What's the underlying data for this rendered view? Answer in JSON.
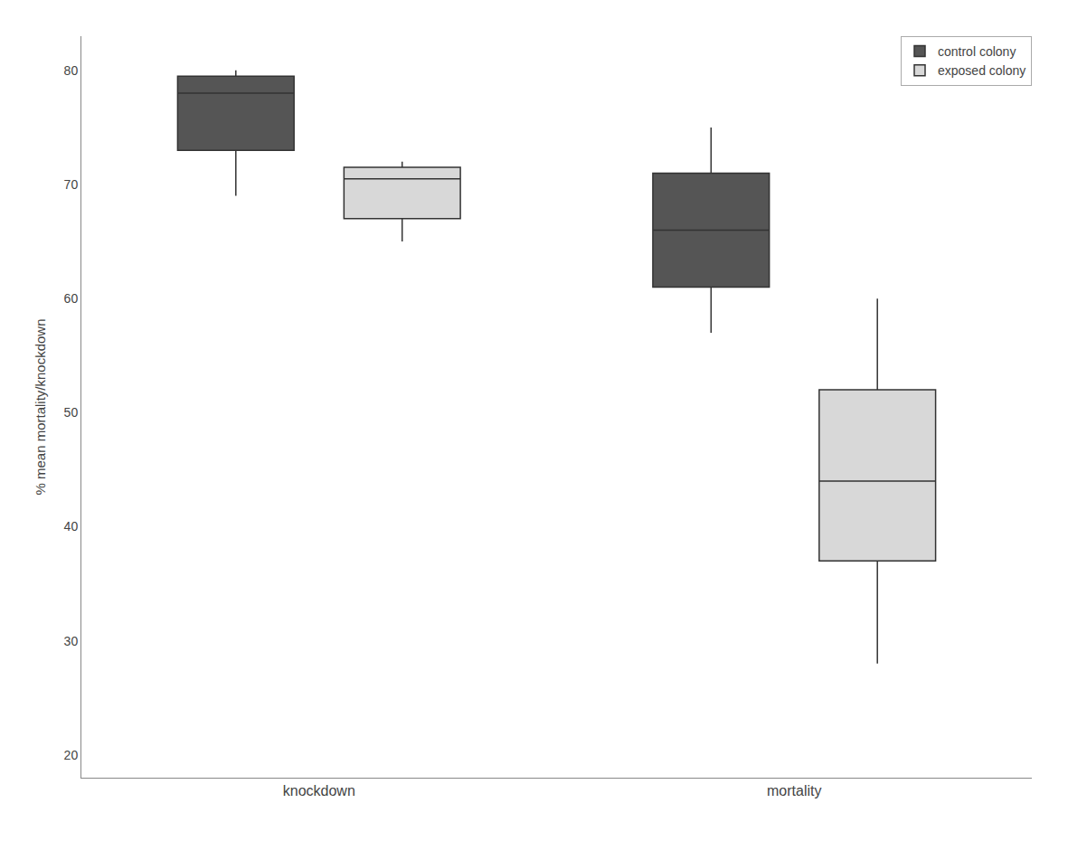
{
  "chart_data": {
    "type": "box",
    "categories": [
      "knockdown",
      "mortality"
    ],
    "series": [
      {
        "name": "control colony",
        "color": "#555555",
        "values": [
          {
            "whisker_low": 69,
            "q1": 73,
            "median": 78,
            "q3": 79.5,
            "whisker_high": 80
          },
          {
            "whisker_low": 57,
            "q1": 61,
            "median": 66,
            "q3": 71,
            "whisker_high": 75
          }
        ]
      },
      {
        "name": "exposed colony",
        "color": "#d8d8d8",
        "values": [
          {
            "whisker_low": 65,
            "q1": 67,
            "median": 70.5,
            "q3": 71.5,
            "whisker_high": 72
          },
          {
            "whisker_low": 28,
            "q1": 37,
            "median": 44,
            "q3": 52,
            "whisker_high": 60
          }
        ]
      }
    ],
    "ylabel": "% mean mortality/knockdown",
    "ylim": [
      18,
      83
    ],
    "yticks": [
      20,
      30,
      40,
      50,
      60,
      70,
      80
    ],
    "grid": false,
    "legend": "upper right"
  }
}
